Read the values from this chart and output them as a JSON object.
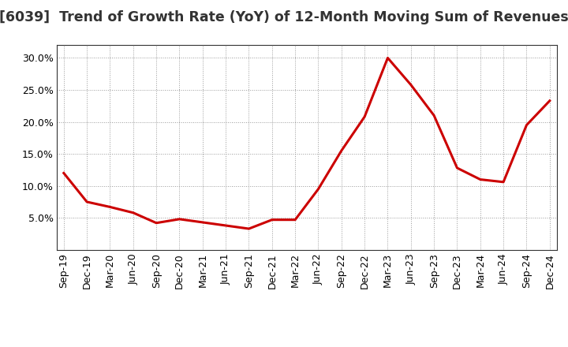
{
  "title": "[6039]  Trend of Growth Rate (YoY) of 12-Month Moving Sum of Revenues",
  "line_color": "#cc0000",
  "background_color": "#ffffff",
  "grid_color": "#999999",
  "x_labels": [
    "Sep-19",
    "Dec-19",
    "Mar-20",
    "Jun-20",
    "Sep-20",
    "Dec-20",
    "Mar-21",
    "Jun-21",
    "Sep-21",
    "Dec-21",
    "Mar-22",
    "Jun-22",
    "Sep-22",
    "Dec-22",
    "Mar-23",
    "Jun-23",
    "Sep-23",
    "Dec-23",
    "Mar-24",
    "Jun-24",
    "Sep-24",
    "Dec-24"
  ],
  "y_values": [
    0.12,
    0.075,
    0.067,
    0.058,
    0.042,
    0.048,
    0.043,
    0.038,
    0.033,
    0.047,
    0.047,
    0.095,
    0.155,
    0.208,
    0.3,
    0.258,
    0.21,
    0.128,
    0.11,
    0.106,
    0.195,
    0.233
  ],
  "ylim": [
    0.0,
    0.32
  ],
  "yticks": [
    0.05,
    0.1,
    0.15,
    0.2,
    0.25,
    0.3
  ],
  "title_fontsize": 12.5,
  "tick_fontsize": 9,
  "line_width": 2.2
}
